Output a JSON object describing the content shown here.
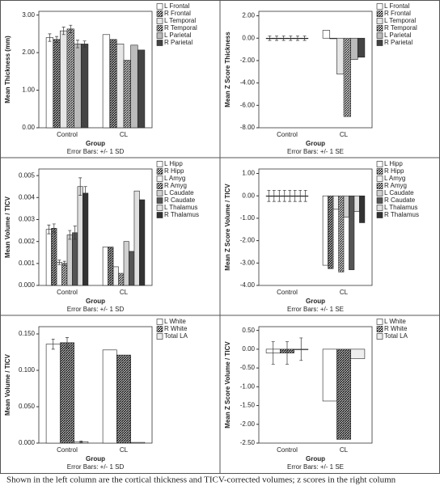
{
  "chart_data": [
    {
      "type": "bar",
      "y_label": "Mean Thickness (mm)",
      "x_label": "Group",
      "note": "Error Bars: +/- 1 SD",
      "categories": [
        "Control",
        "CL"
      ],
      "ylim": [
        0,
        3.1
      ],
      "yticks": [
        {
          "value": 0,
          "label": "0.00"
        },
        {
          "value": 1,
          "label": "1.00"
        },
        {
          "value": 2,
          "label": "2.00"
        },
        {
          "value": 3,
          "label": "3.00"
        }
      ],
      "series": [
        {
          "name": "L Frontal",
          "color": "#ffffff",
          "hatch": false,
          "values": [
            2.4,
            2.48
          ],
          "errors": [
            0.1,
            null
          ]
        },
        {
          "name": "R Frontal",
          "color": "#333333",
          "hatch": true,
          "values": [
            2.35,
            2.35
          ],
          "errors": [
            0.08,
            null
          ]
        },
        {
          "name": "L Temporal",
          "color": "#e6e6e6",
          "hatch": false,
          "values": [
            2.58,
            2.23
          ],
          "errors": [
            0.1,
            null
          ]
        },
        {
          "name": "R Temporal",
          "color": "#888888",
          "hatch": true,
          "values": [
            2.63,
            1.8
          ],
          "errors": [
            0.1,
            null
          ]
        },
        {
          "name": "L Parietal",
          "color": "#bbbbbb",
          "hatch": false,
          "values": [
            2.23,
            2.2
          ],
          "errors": [
            0.1,
            null
          ]
        },
        {
          "name": "R Parietal",
          "color": "#444444",
          "hatch": false,
          "values": [
            2.23,
            2.07
          ],
          "errors": [
            0.08,
            null
          ]
        }
      ]
    },
    {
      "type": "bar",
      "y_label": "Mean Z Score Thickness",
      "x_label": "Group",
      "note": "Error Bars: +/- 1 SE",
      "categories": [
        "Control",
        "CL"
      ],
      "ylim": [
        -8,
        2.4
      ],
      "yticks": [
        {
          "value": 2,
          "label": "2.00"
        },
        {
          "value": 0,
          "label": "0.00"
        },
        {
          "value": -2,
          "label": "-2.00"
        },
        {
          "value": -4,
          "label": "-4.00"
        },
        {
          "value": -6,
          "label": "-6.00"
        },
        {
          "value": -8,
          "label": "-8.00"
        }
      ],
      "series": [
        {
          "name": "L Frontal",
          "color": "#ffffff",
          "hatch": false,
          "values": [
            0,
            0.7
          ],
          "errors": [
            0.2,
            null
          ]
        },
        {
          "name": "R Frontal",
          "color": "#333333",
          "hatch": true,
          "values": [
            0,
            -0.05
          ],
          "errors": [
            0.2,
            null
          ]
        },
        {
          "name": "L Temporal",
          "color": "#e6e6e6",
          "hatch": false,
          "values": [
            0,
            -3.2
          ],
          "errors": [
            0.2,
            null
          ]
        },
        {
          "name": "R Temporal",
          "color": "#888888",
          "hatch": true,
          "values": [
            0,
            -7
          ],
          "errors": [
            0.2,
            null
          ]
        },
        {
          "name": "L Parietal",
          "color": "#bbbbbb",
          "hatch": false,
          "values": [
            0,
            -1.9
          ],
          "errors": [
            0.2,
            null
          ]
        },
        {
          "name": "R Parietal",
          "color": "#444444",
          "hatch": false,
          "values": [
            0,
            -1.7
          ],
          "errors": [
            0.2,
            null
          ]
        }
      ]
    },
    {
      "type": "bar",
      "y_label": "Mean Volume / TICV",
      "x_label": "Group",
      "note": "Error Bars: +/- 1 SD",
      "categories": [
        "Control",
        "CL"
      ],
      "ylim": [
        0,
        0.0053
      ],
      "yticks": [
        {
          "value": 0,
          "label": "0.000"
        },
        {
          "value": 0.001,
          "label": "0.001"
        },
        {
          "value": 0.002,
          "label": "0.002"
        },
        {
          "value": 0.003,
          "label": "0.003"
        },
        {
          "value": 0.004,
          "label": "0.004"
        },
        {
          "value": 0.005,
          "label": "0.005"
        }
      ],
      "series": [
        {
          "name": "L Hipp",
          "color": "#ffffff",
          "hatch": false,
          "values": [
            0.00255,
            0.00175
          ],
          "errors": [
            0.0002,
            null
          ]
        },
        {
          "name": "R Hipp",
          "color": "#333333",
          "hatch": true,
          "values": [
            0.0026,
            0.00175
          ],
          "errors": [
            0.0002,
            null
          ]
        },
        {
          "name": "L Amyg",
          "color": "#f2f2f2",
          "hatch": false,
          "values": [
            0.00105,
            0.00085
          ],
          "errors": [
            0.0001,
            null
          ]
        },
        {
          "name": "R Amyg",
          "color": "#888888",
          "hatch": true,
          "values": [
            0.001,
            0.00055
          ],
          "errors": [
            0.0001,
            null
          ]
        },
        {
          "name": "L Caudate",
          "color": "#d0d0d0",
          "hatch": false,
          "values": [
            0.0023,
            0.002
          ],
          "errors": [
            0.0002,
            null
          ]
        },
        {
          "name": "R Caudate",
          "color": "#555555",
          "hatch": false,
          "values": [
            0.0024,
            0.00155
          ],
          "errors": [
            0.0003,
            null
          ]
        },
        {
          "name": "L Thalamus",
          "color": "#e0e0e0",
          "hatch": false,
          "values": [
            0.0045,
            0.0043
          ],
          "errors": [
            0.0004,
            null
          ]
        },
        {
          "name": "R Thalamus",
          "color": "#333333",
          "hatch": false,
          "values": [
            0.0042,
            0.0039
          ],
          "errors": [
            0.0003,
            null
          ]
        }
      ]
    },
    {
      "type": "bar",
      "y_label": "Mean Z Score Volume / TICV",
      "x_label": "Group",
      "note": "Error Bars: +/- 1 SE",
      "categories": [
        "Control",
        "CL"
      ],
      "ylim": [
        -4,
        1.2
      ],
      "yticks": [
        {
          "value": 1,
          "label": "1.00"
        },
        {
          "value": 0,
          "label": "0.00"
        },
        {
          "value": -1,
          "label": "-1.00"
        },
        {
          "value": -2,
          "label": "-2.00"
        },
        {
          "value": -3,
          "label": "-3.00"
        },
        {
          "value": -4,
          "label": "-4.00"
        }
      ],
      "series": [
        {
          "name": "L Hipp",
          "color": "#ffffff",
          "hatch": false,
          "values": [
            0,
            -3.1
          ],
          "errors": [
            0.25,
            null
          ]
        },
        {
          "name": "R Hipp",
          "color": "#333333",
          "hatch": true,
          "values": [
            0,
            -3.25
          ],
          "errors": [
            0.25,
            null
          ]
        },
        {
          "name": "L Amyg",
          "color": "#f2f2f2",
          "hatch": false,
          "values": [
            0,
            -0.6
          ],
          "errors": [
            0.25,
            null
          ]
        },
        {
          "name": "R Amyg",
          "color": "#888888",
          "hatch": true,
          "values": [
            0,
            -3.4
          ],
          "errors": [
            0.25,
            null
          ]
        },
        {
          "name": "L Caudate",
          "color": "#d0d0d0",
          "hatch": false,
          "values": [
            0,
            -0.95
          ],
          "errors": [
            0.25,
            null
          ]
        },
        {
          "name": "R Caudate",
          "color": "#555555",
          "hatch": false,
          "values": [
            0,
            -3.3
          ],
          "errors": [
            0.25,
            null
          ]
        },
        {
          "name": "L Thalamus",
          "color": "#e0e0e0",
          "hatch": false,
          "values": [
            0,
            -0.7
          ],
          "errors": [
            0.25,
            null
          ]
        },
        {
          "name": "R Thalamus",
          "color": "#333333",
          "hatch": false,
          "values": [
            0,
            -1.2
          ],
          "errors": [
            0.25,
            null
          ]
        }
      ]
    },
    {
      "type": "bar",
      "y_label": "Mean Volume / TICV",
      "x_label": "Group",
      "note": "Error Bars: +/- 1 SD",
      "categories": [
        "Control",
        "CL"
      ],
      "ylim": [
        0,
        0.16
      ],
      "yticks": [
        {
          "value": 0,
          "label": "0.000"
        },
        {
          "value": 0.05,
          "label": "0.050"
        },
        {
          "value": 0.1,
          "label": "0.100"
        },
        {
          "value": 0.15,
          "label": "0.150"
        }
      ],
      "series": [
        {
          "name": "L White",
          "color": "#ffffff",
          "hatch": false,
          "values": [
            0.136,
            0.128
          ],
          "errors": [
            0.007,
            null
          ]
        },
        {
          "name": "R White",
          "color": "#333333",
          "hatch": true,
          "values": [
            0.138,
            0.121
          ],
          "errors": [
            0.007,
            null
          ]
        },
        {
          "name": "Total LA",
          "color": "#eeeeee",
          "hatch": false,
          "values": [
            0.002,
            0.001
          ],
          "errors": [
            0.001,
            null
          ]
        }
      ]
    },
    {
      "type": "bar",
      "y_label": "Mean Z Score Volume / TICV",
      "x_label": "Group",
      "note": "Error Bars: +/- 1 SE",
      "categories": [
        "Control",
        "CL"
      ],
      "ylim": [
        -2.5,
        0.6
      ],
      "yticks": [
        {
          "value": 0.5,
          "label": "0.50"
        },
        {
          "value": 0,
          "label": "0.00"
        },
        {
          "value": -0.5,
          "label": "-0.50"
        },
        {
          "value": -1,
          "label": "-1.00"
        },
        {
          "value": -1.5,
          "label": "-1.50"
        },
        {
          "value": -2,
          "label": "-2.00"
        },
        {
          "value": -2.5,
          "label": "-2.50"
        }
      ],
      "series": [
        {
          "name": "L White",
          "color": "#ffffff",
          "hatch": false,
          "values": [
            -0.1,
            -1.38
          ],
          "errors": [
            0.3,
            null
          ]
        },
        {
          "name": "R White",
          "color": "#333333",
          "hatch": true,
          "values": [
            -0.1,
            -2.4
          ],
          "errors": [
            0.3,
            null
          ]
        },
        {
          "name": "Total LA",
          "color": "#eeeeee",
          "hatch": false,
          "values": [
            0,
            -0.25
          ],
          "errors": [
            0.3,
            null
          ]
        }
      ]
    }
  ],
  "caption": "Shown in the left column are the cortical thickness and TICV-corrected volumes; z scores in the right column"
}
